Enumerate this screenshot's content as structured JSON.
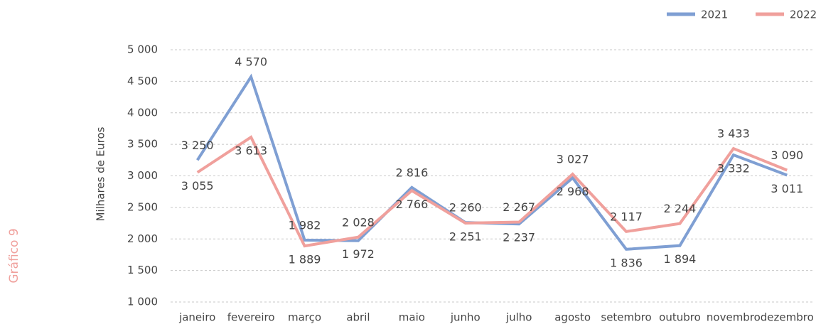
{
  "chart_data": {
    "type": "line",
    "side_label": "Gráfico 9",
    "y_label": "Milhares de Euros",
    "categories": [
      "janeiro",
      "fevereiro",
      "março",
      "abril",
      "maio",
      "junho",
      "julho",
      "agosto",
      "setembro",
      "outubro",
      "novembro",
      "dezembro"
    ],
    "series": [
      {
        "name": "2021",
        "color": "#7f9fd3",
        "values": [
          3250,
          4570,
          1982,
          1972,
          2816,
          2260,
          2237,
          2968,
          1836,
          1894,
          3332,
          3011
        ],
        "value_labels": [
          "3 250",
          "4 570",
          "1 982",
          "1 972",
          "2 816",
          "2 260",
          "2 237",
          "2 968",
          "1 836",
          "1 894",
          "3 332",
          "3 011"
        ]
      },
      {
        "name": "2022",
        "color": "#f0a09c",
        "values": [
          3055,
          3613,
          1889,
          2028,
          2766,
          2251,
          2267,
          3027,
          2117,
          2244,
          3433,
          3090
        ],
        "value_labels": [
          "3 055",
          "3 613",
          "1 889",
          "2 028",
          "2 766",
          "2 251",
          "2 267",
          "3 027",
          "2 117",
          "2 244",
          "3 433",
          "3 090"
        ]
      }
    ],
    "ylim": [
      1000,
      5000
    ],
    "yticks": [
      {
        "value": 1000,
        "label": "1 000"
      },
      {
        "value": 1500,
        "label": "1 500"
      },
      {
        "value": 2000,
        "label": "2 000"
      },
      {
        "value": 2500,
        "label": "2 500"
      },
      {
        "value": 3000,
        "label": "3 000"
      },
      {
        "value": 3500,
        "label": "3 500"
      },
      {
        "value": 4000,
        "label": "4 000"
      },
      {
        "value": 4500,
        "label": "4 500"
      },
      {
        "value": 5000,
        "label": "5 000"
      }
    ],
    "grid": true,
    "legend": "top-right"
  }
}
